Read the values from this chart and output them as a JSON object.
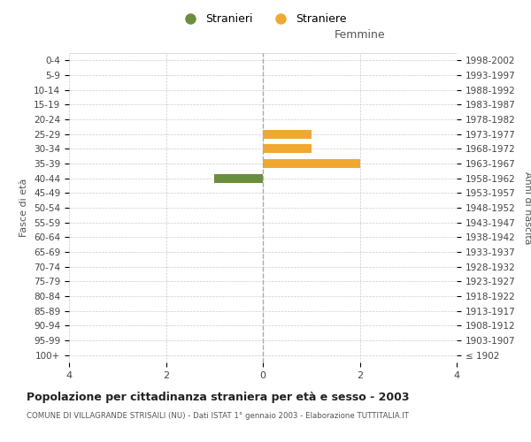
{
  "age_groups": [
    "100+",
    "95-99",
    "90-94",
    "85-89",
    "80-84",
    "75-79",
    "70-74",
    "65-69",
    "60-64",
    "55-59",
    "50-54",
    "45-49",
    "40-44",
    "35-39",
    "30-34",
    "25-29",
    "20-24",
    "15-19",
    "10-14",
    "5-9",
    "0-4"
  ],
  "birth_years": [
    "≤ 1902",
    "1903-1907",
    "1908-1912",
    "1913-1917",
    "1918-1922",
    "1923-1927",
    "1928-1932",
    "1933-1937",
    "1938-1942",
    "1943-1947",
    "1948-1952",
    "1953-1957",
    "1958-1962",
    "1963-1967",
    "1968-1972",
    "1973-1977",
    "1978-1982",
    "1983-1987",
    "1988-1992",
    "1993-1997",
    "1998-2002"
  ],
  "males": [
    0,
    0,
    0,
    0,
    0,
    0,
    0,
    0,
    0,
    0,
    0,
    0,
    1,
    0,
    0,
    0,
    0,
    0,
    0,
    0,
    0
  ],
  "females": [
    0,
    0,
    0,
    0,
    0,
    0,
    0,
    0,
    0,
    0,
    0,
    0,
    0,
    2,
    1,
    1,
    0,
    0,
    0,
    0,
    0
  ],
  "male_color": "#6b8e3e",
  "female_color": "#f0a830",
  "male_label": "Stranieri",
  "female_label": "Straniere",
  "title": "Popolazione per cittadinanza straniera per età e sesso - 2003",
  "subtitle": "COMUNE DI VILLAGRANDE STRISAILI (NU) - Dati ISTAT 1° gennaio 2003 - Elaborazione TUTTITALIA.IT",
  "xlabel_right": "Femmine",
  "ylabel_left": "Fasce di età",
  "ylabel_right": "Anni di nascita",
  "xlim": 4,
  "background_color": "#ffffff",
  "grid_color": "#cccccc",
  "spine_color": "#cccccc"
}
